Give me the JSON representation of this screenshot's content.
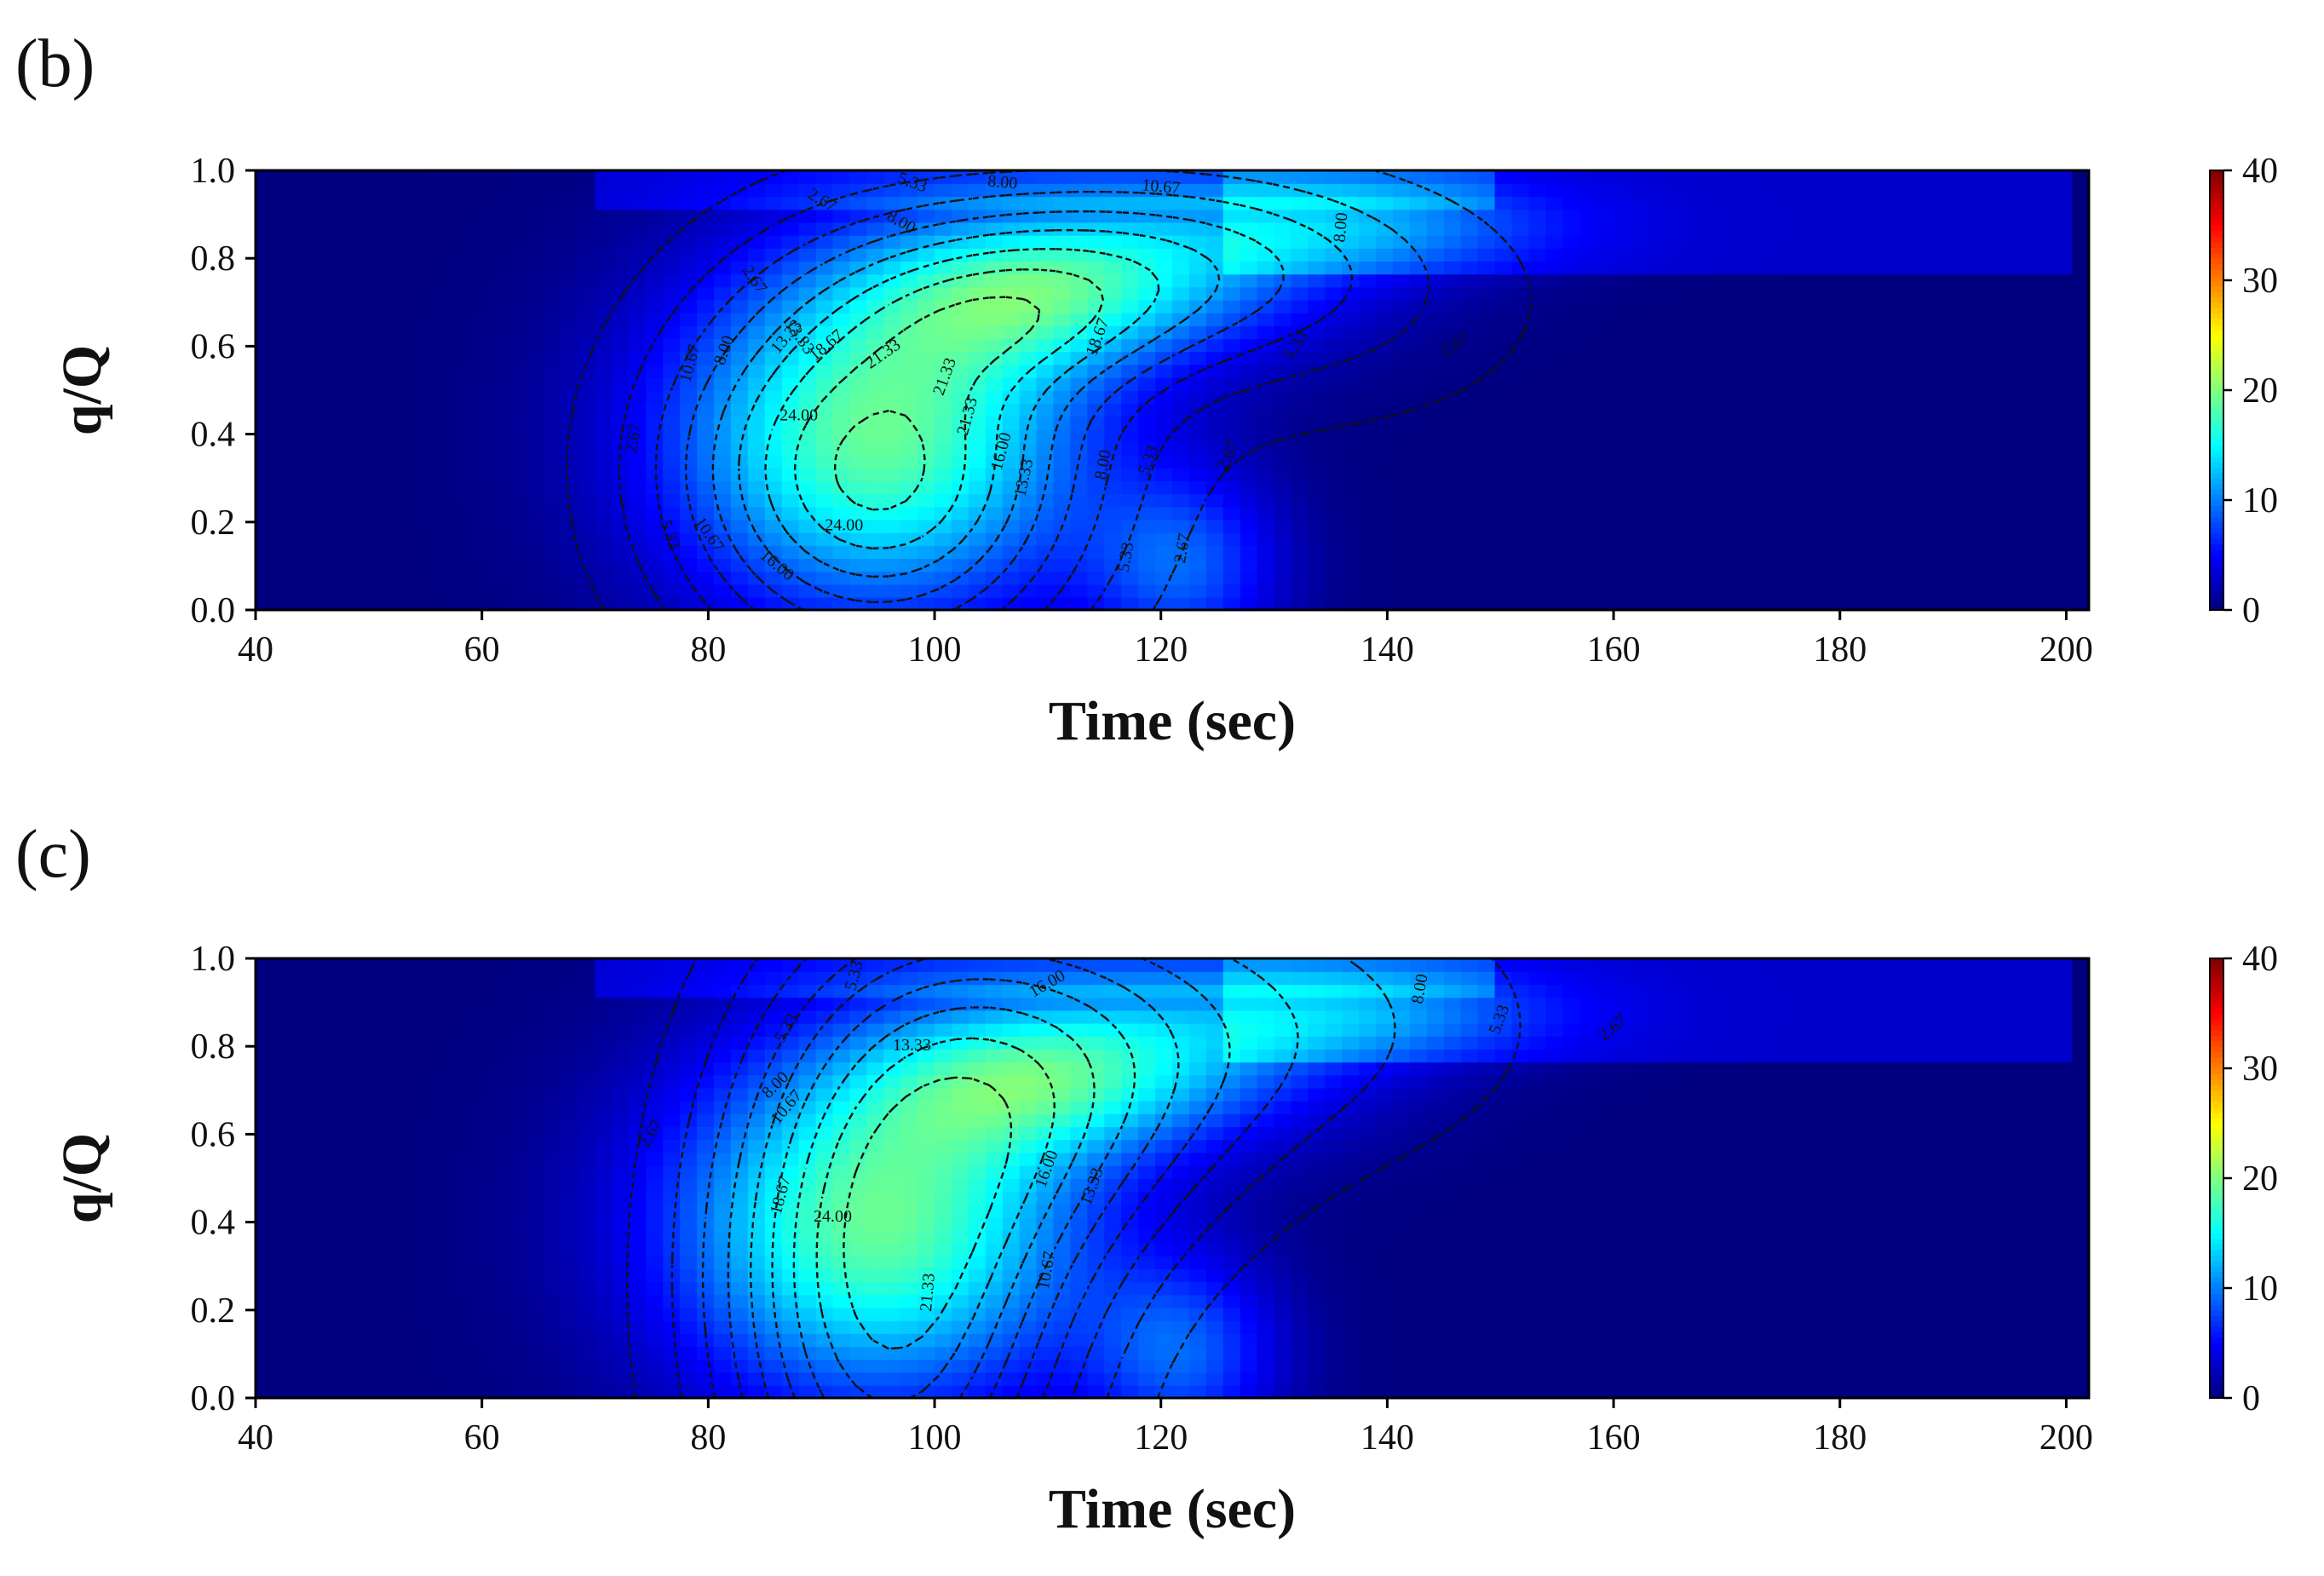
{
  "colors": {
    "colormap": [
      "#00007f",
      "#0000ff",
      "#007fff",
      "#00ffff",
      "#7fff7f",
      "#ffff00",
      "#ff7f00",
      "#ff0000",
      "#7f0000"
    ],
    "contour_line": "#111111",
    "frame": "#000000"
  },
  "chart_data": [
    {
      "panel_tag": "(b)",
      "type": "heatmap",
      "xlabel": "Time (sec)",
      "ylabel": "q/Q",
      "xlim": [
        40,
        202
      ],
      "ylim": [
        0,
        1
      ],
      "xticks": [
        "40",
        "60",
        "80",
        "100",
        "120",
        "140",
        "160",
        "180",
        "200"
      ],
      "yticks": [
        "0.0",
        "0.2",
        "0.4",
        "0.6",
        "0.8",
        "1.0"
      ],
      "colorbar": {
        "range": [
          0,
          40
        ],
        "ticks": [
          "0",
          "10",
          "20",
          "30",
          "40"
        ],
        "colormap": "jet"
      },
      "grid": false,
      "heatmap_blobs": [
        {
          "x": 95,
          "y": 0.4,
          "sx": 13,
          "sy": 0.28,
          "value": 19
        },
        {
          "x": 108,
          "y": 0.7,
          "sx": 10,
          "sy": 0.12,
          "value": 6
        },
        {
          "x": 117,
          "y": 0.78,
          "sx": 14,
          "sy": 0.14,
          "value": 11
        },
        {
          "x": 138,
          "y": 0.88,
          "sx": 12,
          "sy": 0.08,
          "value": 7
        },
        {
          "x": 122,
          "y": 0.1,
          "sx": 6,
          "sy": 0.15,
          "value": 8
        }
      ],
      "contour_levels": [
        "2.67",
        "5.33",
        "8.00",
        "10.67",
        "13.33",
        "16.00",
        "18.67",
        "21.33",
        "24.00"
      ],
      "contour_model": {
        "blobs": [
          {
            "x": 95,
            "y": 0.32,
            "sx": 13,
            "sy": 0.32,
            "value": 25
          },
          {
            "x": 108,
            "y": 0.66,
            "sx": 10,
            "sy": 0.12,
            "value": 7
          },
          {
            "x": 118,
            "y": 0.8,
            "sx": 15,
            "sy": 0.15,
            "value": 10
          },
          {
            "x": 135,
            "y": 0.65,
            "sx": 16,
            "sy": 0.22,
            "value": 4
          }
        ]
      },
      "contour_labels": [
        {
          "text": "2.67",
          "x": 73.5,
          "y": 0.39,
          "rot": -80
        },
        {
          "text": "5.33",
          "x": 76.5,
          "y": 0.17,
          "rot": 70
        },
        {
          "text": "10.67",
          "x": 78.5,
          "y": 0.56,
          "rot": -75
        },
        {
          "text": "10.67",
          "x": 80,
          "y": 0.17,
          "rot": 55
        },
        {
          "text": "8.00",
          "x": 81.5,
          "y": 0.59,
          "rot": -70
        },
        {
          "text": "16.00",
          "x": 86,
          "y": 0.1,
          "rot": 40
        },
        {
          "text": "13.33",
          "x": 87,
          "y": 0.62,
          "rot": -50
        },
        {
          "text": "18.67",
          "x": 90.5,
          "y": 0.6,
          "rot": -40
        },
        {
          "text": "24.00",
          "x": 88,
          "y": 0.44,
          "rot": 0
        },
        {
          "text": "24.00",
          "x": 92,
          "y": 0.19,
          "rot": 0
        },
        {
          "text": "21.33",
          "x": 95.5,
          "y": 0.58,
          "rot": -35
        },
        {
          "text": "21.33",
          "x": 101,
          "y": 0.53,
          "rot": -70
        },
        {
          "text": "21.33",
          "x": 103,
          "y": 0.44,
          "rot": -75
        },
        {
          "text": "16.00",
          "x": 106,
          "y": 0.36,
          "rot": -75
        },
        {
          "text": "13.33",
          "x": 108,
          "y": 0.3,
          "rot": -78
        },
        {
          "text": "18.67",
          "x": 114.5,
          "y": 0.62,
          "rot": -70
        },
        {
          "text": "8.00",
          "x": 115,
          "y": 0.33,
          "rot": -80
        },
        {
          "text": "5.33",
          "x": 117,
          "y": 0.12,
          "rot": -80
        },
        {
          "text": "5.33",
          "x": 119,
          "y": 0.34,
          "rot": -70
        },
        {
          "text": "2.67",
          "x": 122,
          "y": 0.14,
          "rot": -80
        },
        {
          "text": "2.67",
          "x": 126,
          "y": 0.35,
          "rot": -65
        },
        {
          "text": "5.33",
          "x": 132,
          "y": 0.6,
          "rot": -55
        },
        {
          "text": "2.67",
          "x": 146,
          "y": 0.6,
          "rot": -30
        },
        {
          "text": "8.00",
          "x": 136,
          "y": 0.87,
          "rot": -85
        },
        {
          "text": "10.67",
          "x": 120,
          "y": 0.96,
          "rot": 5
        },
        {
          "text": "8.00",
          "x": 106,
          "y": 0.97,
          "rot": 5
        },
        {
          "text": "5.33",
          "x": 98,
          "y": 0.97,
          "rot": 20
        },
        {
          "text": "8.00",
          "x": 97,
          "y": 0.88,
          "rot": 30
        },
        {
          "text": "2.67",
          "x": 90,
          "y": 0.93,
          "rot": 30
        },
        {
          "text": "2.67",
          "x": 84,
          "y": 0.75,
          "rot": 55
        },
        {
          "text": "13.33",
          "x": 88,
          "y": 0.62,
          "rot": 55
        }
      ]
    },
    {
      "panel_tag": "(c)",
      "type": "heatmap",
      "xlabel": "Time (sec)",
      "ylabel": "q/Q",
      "xlim": [
        40,
        202
      ],
      "ylim": [
        0,
        1
      ],
      "xticks": [
        "40",
        "60",
        "80",
        "100",
        "120",
        "140",
        "160",
        "180",
        "200"
      ],
      "yticks": [
        "0.0",
        "0.2",
        "0.4",
        "0.6",
        "0.8",
        "1.0"
      ],
      "colorbar": {
        "range": [
          0,
          40
        ],
        "ticks": [
          "0",
          "10",
          "20",
          "30",
          "40"
        ],
        "colormap": "jet"
      },
      "grid": false,
      "heatmap_blobs": [
        {
          "x": 95,
          "y": 0.4,
          "sx": 13,
          "sy": 0.28,
          "value": 19
        },
        {
          "x": 108,
          "y": 0.7,
          "sx": 10,
          "sy": 0.12,
          "value": 6
        },
        {
          "x": 117,
          "y": 0.78,
          "sx": 14,
          "sy": 0.14,
          "value": 11
        },
        {
          "x": 138,
          "y": 0.88,
          "sx": 12,
          "sy": 0.08,
          "value": 7
        },
        {
          "x": 122,
          "y": 0.1,
          "sx": 6,
          "sy": 0.15,
          "value": 8
        }
      ],
      "contour_levels": [
        "2.67",
        "5.33",
        "8.00",
        "10.67",
        "13.33",
        "16.00",
        "18.67",
        "21.33",
        "24.00"
      ],
      "contour_model": {
        "blobs": [
          {
            "x": 96,
            "y": 0.25,
            "sx": 11,
            "sy": 0.5,
            "value": 24
          },
          {
            "x": 110,
            "y": 0.7,
            "sx": 12,
            "sy": 0.3,
            "value": 12
          },
          {
            "x": 130,
            "y": 0.85,
            "sx": 17,
            "sy": 0.25,
            "value": 6
          }
        ]
      },
      "contour_labels": [
        {
          "text": "2.67",
          "x": 75,
          "y": 0.6,
          "rot": -60
        },
        {
          "text": "8.00",
          "x": 86,
          "y": 0.71,
          "rot": -45
        },
        {
          "text": "10.67",
          "x": 87,
          "y": 0.66,
          "rot": -50
        },
        {
          "text": "18.67",
          "x": 86.5,
          "y": 0.46,
          "rot": -75
        },
        {
          "text": "24.00",
          "x": 91,
          "y": 0.41,
          "rot": 0
        },
        {
          "text": "21.33",
          "x": 99.5,
          "y": 0.24,
          "rot": -85
        },
        {
          "text": "10.67",
          "x": 110,
          "y": 0.29,
          "rot": -80
        },
        {
          "text": "16.00",
          "x": 110,
          "y": 0.52,
          "rot": -70
        },
        {
          "text": "13.33",
          "x": 114,
          "y": 0.48,
          "rot": -70
        },
        {
          "text": "13.33",
          "x": 98,
          "y": 0.8,
          "rot": 0
        },
        {
          "text": "16.00",
          "x": 110,
          "y": 0.94,
          "rot": -30
        },
        {
          "text": "5.33",
          "x": 93,
          "y": 0.96,
          "rot": -75
        },
        {
          "text": "5.33",
          "x": 87,
          "y": 0.84,
          "rot": -60
        },
        {
          "text": "8.00",
          "x": 143,
          "y": 0.93,
          "rot": -80
        },
        {
          "text": "5.33",
          "x": 150,
          "y": 0.86,
          "rot": -70
        },
        {
          "text": "2.67",
          "x": 160,
          "y": 0.84,
          "rot": -40
        }
      ]
    }
  ]
}
